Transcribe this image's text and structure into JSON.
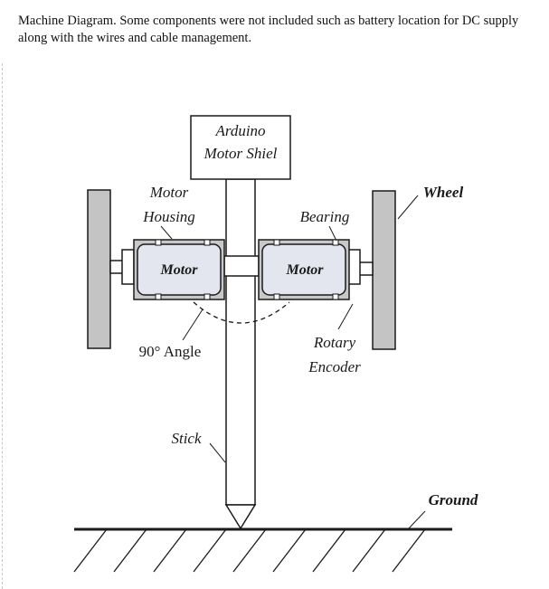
{
  "caption": {
    "text": "Machine Diagram. Some components were not included such as battery location for DC supply along with the wires and cable management."
  },
  "diagram": {
    "arduino_label_line1": "Arduino",
    "arduino_label_line2": "Motor Shiel",
    "motor_housing_line1": "Motor",
    "motor_housing_line2": "Housing",
    "bearing_label": "Bearing",
    "wheel_label": "Wheel",
    "left_motor_label": "Motor",
    "right_motor_label": "Motor",
    "angle_label": "90° Angle",
    "rotary_encoder_line1": "Rotary",
    "rotary_encoder_line2": "Encoder",
    "stick_label": "Stick",
    "ground_label": "Ground"
  },
  "colors": {
    "wheel_fill": "#c4c4c4",
    "housing_fill": "#c8c8c8",
    "motor_fill": "#e3e6ef",
    "line": "#1a1a1a"
  }
}
